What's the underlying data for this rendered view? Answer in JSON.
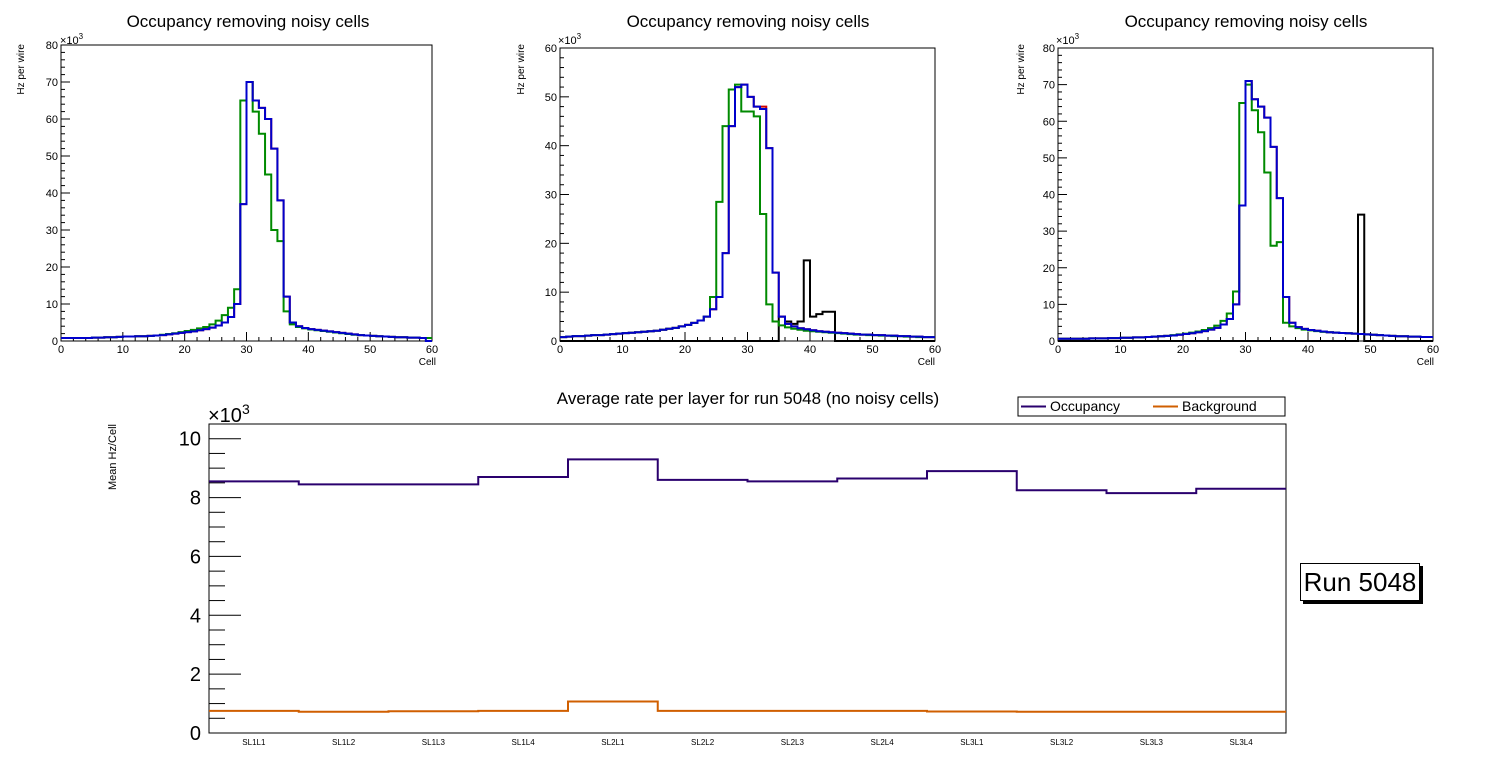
{
  "colors": {
    "red": "#cc0000",
    "green": "#008a00",
    "blue": "#0000cc",
    "black": "#000000",
    "occupancy": "#2a006e",
    "background": "#d05f00"
  },
  "chart_data": [
    {
      "type": "line",
      "title": "Occupancy removing noisy cells",
      "xlabel": "Cell",
      "ylabel": "Hz per wire",
      "multiplier": "×10",
      "exponent": "3",
      "xlim": [
        0,
        60
      ],
      "ylim": [
        0,
        80
      ],
      "xticks": [
        0,
        10,
        20,
        30,
        40,
        50,
        60
      ],
      "yticks": [
        0,
        10,
        20,
        30,
        40,
        50,
        60,
        70,
        80
      ],
      "series": [
        {
          "name": "red",
          "color": "#cc0000",
          "values": [
            0.8,
            0.8,
            0.8,
            0.8,
            0.8,
            0.9,
            0.9,
            1,
            1,
            1.1,
            1.2,
            1.2,
            1.3,
            1.3,
            1.4,
            1.5,
            1.6,
            1.8,
            2,
            2.2,
            2.4,
            2.6,
            2.9,
            3.2,
            3.6,
            4.2,
            5,
            6.5,
            10,
            37,
            70,
            65,
            63,
            60,
            52,
            38,
            12,
            5,
            4,
            3.5,
            3.2,
            3,
            2.8,
            2.6,
            2.4,
            2.2,
            2,
            1.8,
            1.6,
            1.5,
            1.4,
            1.3,
            1.2,
            1.1,
            1,
            1,
            0.9,
            0.9,
            0.8,
            0.8
          ]
        },
        {
          "name": "green",
          "color": "#008a00",
          "values": [
            0.8,
            0.8,
            0.8,
            0.8,
            0.8,
            0.9,
            0.9,
            1,
            1,
            1.1,
            1.2,
            1.2,
            1.3,
            1.3,
            1.4,
            1.5,
            1.7,
            1.9,
            2.1,
            2.4,
            2.7,
            3,
            3.4,
            3.8,
            4.5,
            5.5,
            7,
            9,
            14,
            65,
            70,
            62,
            56,
            45,
            30,
            27,
            8,
            4.5,
            3.8,
            3.4,
            3.1,
            2.9,
            2.7,
            2.5,
            2.3,
            2.1,
            1.9,
            1.7,
            1.6,
            1.5,
            1.4,
            1.3,
            1.2,
            1.1,
            1,
            1,
            0.9,
            0.9,
            0.8,
            0.8
          ]
        },
        {
          "name": "blue",
          "color": "#0000cc",
          "values": [
            0.8,
            0.8,
            0.8,
            0.8,
            0.8,
            0.9,
            0.9,
            1,
            1,
            1.1,
            1.2,
            1.2,
            1.3,
            1.3,
            1.4,
            1.5,
            1.6,
            1.8,
            2,
            2.2,
            2.4,
            2.6,
            2.9,
            3.2,
            3.6,
            4.2,
            5,
            6.5,
            10,
            37,
            70,
            65,
            63,
            60,
            52,
            38,
            12,
            5,
            4,
            3.5,
            3.2,
            3,
            2.8,
            2.6,
            2.4,
            2.2,
            2,
            1.8,
            1.6,
            1.5,
            1.4,
            1.3,
            1.2,
            1.1,
            1,
            1,
            0.9,
            0.9,
            0.8,
            0
          ]
        }
      ]
    },
    {
      "type": "line",
      "title": "Occupancy removing noisy cells",
      "xlabel": "Cell",
      "ylabel": "Hz per wire",
      "multiplier": "×10",
      "exponent": "3",
      "xlim": [
        0,
        60
      ],
      "ylim": [
        0,
        60
      ],
      "xticks": [
        0,
        10,
        20,
        30,
        40,
        50,
        60
      ],
      "yticks": [
        0,
        10,
        20,
        30,
        40,
        50,
        60
      ],
      "series": [
        {
          "name": "black",
          "color": "#000000",
          "values": [
            0,
            0,
            0,
            0,
            0,
            0,
            0,
            0,
            0,
            0,
            0,
            0,
            0,
            0,
            0,
            0,
            0,
            0,
            0,
            0,
            0,
            0,
            0,
            0,
            0,
            0,
            0,
            0,
            0,
            0,
            0,
            0,
            0,
            0,
            0,
            5,
            4,
            3.5,
            4,
            16.5,
            5,
            5.5,
            6,
            6,
            0,
            0,
            0,
            0,
            0,
            0,
            0,
            0,
            0,
            0,
            0,
            0,
            0,
            0,
            0,
            0
          ]
        },
        {
          "name": "red",
          "color": "#cc0000",
          "values": [
            0.8,
            0.9,
            1,
            1,
            1.1,
            1.2,
            1.2,
            1.3,
            1.4,
            1.5,
            1.6,
            1.7,
            1.8,
            1.9,
            2,
            2.1,
            2.3,
            2.5,
            2.7,
            3,
            3.3,
            3.7,
            4.2,
            5,
            6.5,
            9,
            18,
            44,
            52,
            52.5,
            50,
            48,
            48,
            39.5,
            14,
            5,
            3.5,
            3,
            2.6,
            2.4,
            2.2,
            2,
            1.9,
            1.8,
            1.7,
            1.6,
            1.5,
            1.4,
            1.3,
            1.3,
            1.2,
            1.2,
            1.1,
            1.1,
            1,
            1,
            0.9,
            0.9,
            0.8,
            0.8
          ]
        },
        {
          "name": "green",
          "color": "#008a00",
          "values": [
            0.8,
            0.9,
            1,
            1,
            1.1,
            1.2,
            1.2,
            1.3,
            1.4,
            1.5,
            1.6,
            1.7,
            1.8,
            1.9,
            2,
            2.1,
            2.3,
            2.5,
            2.7,
            3,
            3.3,
            3.7,
            4.2,
            5,
            9,
            28.5,
            44,
            51.5,
            52.5,
            47,
            47,
            46,
            26,
            7.5,
            4,
            3.2,
            2.8,
            2.5,
            2.3,
            2.1,
            2,
            1.9,
            1.8,
            1.7,
            1.6,
            1.5,
            1.4,
            1.3,
            1.3,
            1.2,
            1.2,
            1.1,
            1.1,
            1,
            1,
            0.9,
            0.9,
            0.8,
            0.8,
            0.8
          ]
        },
        {
          "name": "blue",
          "color": "#0000cc",
          "values": [
            0.8,
            0.9,
            1,
            1,
            1.1,
            1.2,
            1.2,
            1.3,
            1.4,
            1.5,
            1.6,
            1.7,
            1.8,
            1.9,
            2,
            2.1,
            2.3,
            2.5,
            2.7,
            3,
            3.3,
            3.7,
            4.2,
            5,
            6.5,
            9,
            18,
            44,
            52,
            52.5,
            50,
            48,
            47.5,
            39.5,
            14,
            5,
            3.5,
            3,
            2.6,
            2.4,
            2.2,
            2,
            1.9,
            1.8,
            1.7,
            1.6,
            1.5,
            1.4,
            1.3,
            1.3,
            1.2,
            1.2,
            1.1,
            1.1,
            1,
            1,
            0.9,
            0.9,
            0.8,
            0.8
          ]
        }
      ]
    },
    {
      "type": "line",
      "title": "Occupancy removing noisy cells",
      "xlabel": "Cell",
      "ylabel": "Hz per wire",
      "multiplier": "×10",
      "exponent": "3",
      "xlim": [
        0,
        60
      ],
      "ylim": [
        0,
        80
      ],
      "xticks": [
        0,
        10,
        20,
        30,
        40,
        50,
        60
      ],
      "yticks": [
        0,
        10,
        20,
        30,
        40,
        50,
        60,
        70,
        80
      ],
      "series": [
        {
          "name": "black",
          "color": "#000000",
          "values": [
            0,
            0,
            0,
            0,
            0,
            0,
            0,
            0,
            0,
            0,
            0,
            0,
            0,
            0,
            0,
            0,
            0,
            0,
            0,
            0,
            0,
            0,
            0,
            0,
            0,
            0,
            0,
            0,
            0,
            0,
            0,
            0,
            0,
            0,
            0,
            0,
            0,
            0,
            0,
            0,
            0,
            0,
            0,
            0,
            0,
            0,
            0,
            0,
            34.5,
            0,
            0,
            0,
            0,
            0,
            0,
            0,
            0,
            0,
            0,
            0
          ]
        },
        {
          "name": "red",
          "color": "#cc0000",
          "values": [
            0.6,
            0.6,
            0.6,
            0.6,
            0.6,
            0.7,
            0.7,
            0.7,
            0.8,
            0.8,
            0.9,
            0.9,
            1,
            1,
            1.1,
            1.2,
            1.3,
            1.4,
            1.5,
            1.7,
            1.9,
            2.1,
            2.4,
            2.7,
            3.1,
            3.6,
            4.5,
            6,
            10,
            37,
            71,
            66,
            64,
            61,
            53,
            39,
            12,
            5,
            3.8,
            3.3,
            3,
            2.8,
            2.6,
            2.4,
            2.3,
            2.2,
            2.1,
            2,
            1.9,
            1.8,
            1.7,
            1.6,
            1.5,
            1.4,
            1.3,
            1.3,
            1.2,
            1.2,
            1.1,
            1.1
          ]
        },
        {
          "name": "green",
          "color": "#008a00",
          "values": [
            0.6,
            0.6,
            0.6,
            0.6,
            0.6,
            0.7,
            0.7,
            0.7,
            0.8,
            0.8,
            0.9,
            0.9,
            1,
            1,
            1.1,
            1.2,
            1.3,
            1.4,
            1.6,
            1.8,
            2,
            2.3,
            2.6,
            3,
            3.5,
            4.2,
            5.5,
            7.5,
            13.5,
            65,
            70,
            63,
            57,
            46,
            26,
            27,
            5,
            4,
            3.5,
            3.1,
            2.9,
            2.7,
            2.5,
            2.4,
            2.3,
            2.2,
            2.1,
            2,
            1.9,
            1.8,
            1.7,
            1.6,
            1.5,
            1.4,
            1.3,
            1.3,
            1.2,
            1.2,
            1.1,
            1.1
          ]
        },
        {
          "name": "blue",
          "color": "#0000cc",
          "values": [
            0.6,
            0.6,
            0.6,
            0.6,
            0.6,
            0.7,
            0.7,
            0.7,
            0.8,
            0.8,
            0.9,
            0.9,
            1,
            1,
            1.1,
            1.2,
            1.3,
            1.4,
            1.5,
            1.7,
            1.9,
            2.1,
            2.4,
            2.7,
            3.1,
            3.6,
            4.5,
            6,
            10,
            37,
            71,
            66,
            64,
            61,
            53,
            39,
            12,
            5,
            3.8,
            3.3,
            3,
            2.8,
            2.6,
            2.4,
            2.3,
            2.2,
            2.1,
            2,
            1.9,
            1.8,
            1.7,
            1.6,
            1.5,
            1.4,
            1.3,
            1.3,
            1.2,
            1.2,
            1.1,
            1.1
          ]
        }
      ]
    },
    {
      "type": "line",
      "title": "Average rate per layer for run 5048 (no noisy cells)",
      "xlabel": "",
      "ylabel": "Mean Hz/Cell",
      "multiplier": "×10",
      "exponent": "3",
      "ylim": [
        0,
        10.5
      ],
      "yticks": [
        0,
        2,
        4,
        6,
        8,
        10
      ],
      "categories": [
        "SL1L1",
        "SL1L2",
        "SL1L3",
        "SL1L4",
        "SL2L1",
        "SL2L2",
        "SL2L3",
        "SL2L4",
        "SL3L1",
        "SL3L2",
        "SL3L3",
        "SL3L4"
      ],
      "series": [
        {
          "name": "Occupancy",
          "color": "#2a006e",
          "values": [
            8.55,
            8.45,
            8.45,
            8.7,
            9.3,
            8.6,
            8.55,
            8.65,
            8.9,
            8.25,
            8.15,
            8.3
          ]
        },
        {
          "name": "Background",
          "color": "#d05f00",
          "values": [
            0.75,
            0.72,
            0.74,
            0.75,
            1.07,
            0.75,
            0.75,
            0.75,
            0.73,
            0.72,
            0.72,
            0.72
          ]
        }
      ],
      "legend": [
        "Occupancy",
        "Background"
      ],
      "legend_position": "top-right",
      "annotation": "Run 5048"
    }
  ]
}
